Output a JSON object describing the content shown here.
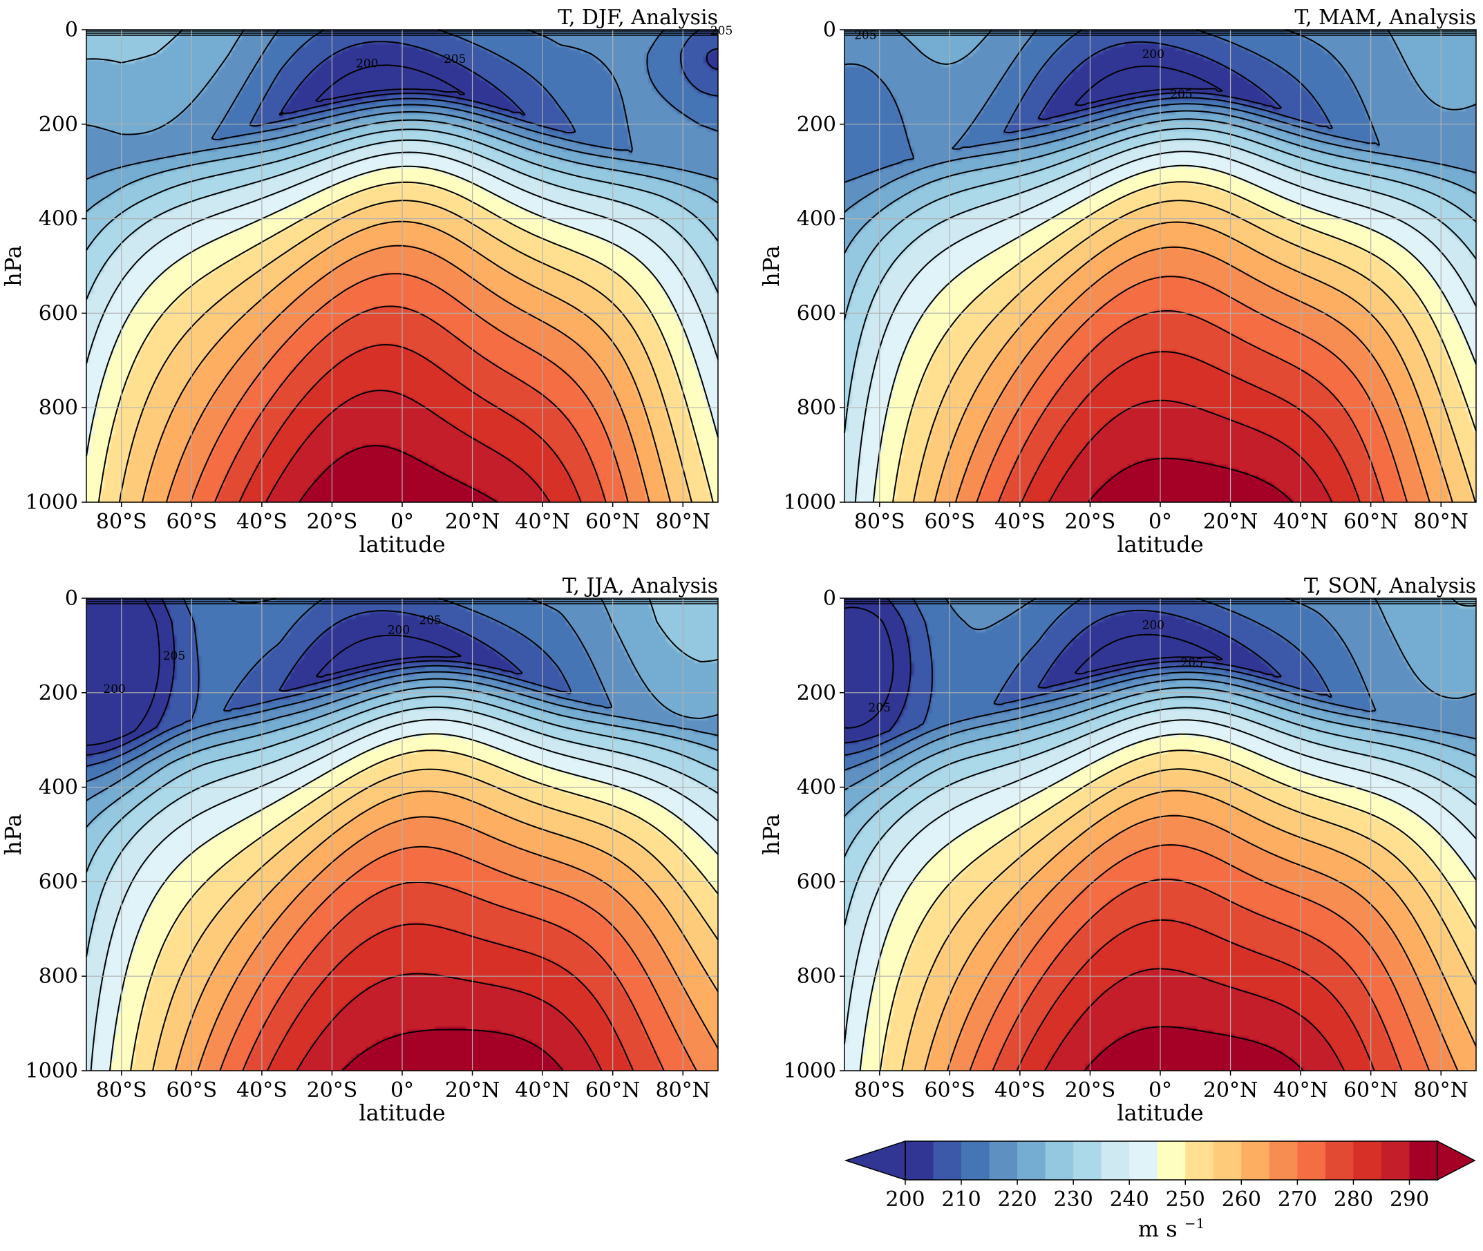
{
  "chart_data": [
    {
      "type": "contour",
      "title": "T, DJF, Analysis",
      "xlabel": "latitude",
      "ylabel": "hPa",
      "xlim": [
        -90,
        90
      ],
      "ylim": [
        1000,
        0
      ],
      "grid": true,
      "x_ticks": [
        "80°S",
        "60°S",
        "40°S",
        "20°S",
        "0°",
        "20°N",
        "40°N",
        "60°N",
        "80°N"
      ],
      "y_ticks": [
        "0",
        "200",
        "400",
        "600",
        "800",
        "1000"
      ],
      "contour_labels": [
        "200",
        "205",
        "205"
      ],
      "approx_values": {
        "surface_tropics": 295,
        "tropopause_tropics_min": 195,
        "south_pole_surface": 248,
        "north_pole_surface": 252,
        "south_pole_200hPa": 227,
        "north_pole_100hPa": 207
      }
    },
    {
      "type": "contour",
      "title": "T, MAM, Analysis",
      "xlabel": "latitude",
      "ylabel": "hPa",
      "xlim": [
        -90,
        90
      ],
      "ylim": [
        1000,
        0
      ],
      "grid": true,
      "x_ticks": [
        "80°S",
        "60°S",
        "40°S",
        "20°S",
        "0°",
        "20°N",
        "40°N",
        "60°N",
        "80°N"
      ],
      "y_ticks": [
        "0",
        "200",
        "400",
        "600",
        "800",
        "1000"
      ],
      "contour_labels": [
        "200",
        "205",
        "205"
      ],
      "approx_values": {
        "surface_tropics": 295,
        "tropopause_tropics_min": 195,
        "south_pole_surface": 238,
        "north_pole_surface": 258
      }
    },
    {
      "type": "contour",
      "title": "T, JJA, Analysis",
      "xlabel": "latitude",
      "ylabel": "hPa",
      "xlim": [
        -90,
        90
      ],
      "ylim": [
        1000,
        0
      ],
      "grid": true,
      "x_ticks": [
        "80°S",
        "60°S",
        "40°S",
        "20°S",
        "0°",
        "20°N",
        "40°N",
        "60°N",
        "80°N"
      ],
      "y_ticks": [
        "0",
        "200",
        "400",
        "600",
        "800",
        "1000"
      ],
      "contour_labels": [
        "200",
        "205",
        "205",
        "200"
      ],
      "approx_values": {
        "surface_tropics": 295,
        "tropopause_tropics_min": 195,
        "south_pole_surface": 240,
        "north_pole_surface": 270,
        "south_pole_200hPa": 198
      }
    },
    {
      "type": "contour",
      "title": "T, SON, Analysis",
      "xlabel": "latitude",
      "ylabel": "hPa",
      "xlim": [
        -90,
        90
      ],
      "ylim": [
        1000,
        0
      ],
      "grid": true,
      "x_ticks": [
        "80°S",
        "60°S",
        "40°S",
        "20°S",
        "0°",
        "20°N",
        "40°N",
        "60°N",
        "80°N"
      ],
      "y_ticks": [
        "0",
        "200",
        "400",
        "600",
        "800",
        "1000"
      ],
      "contour_labels": [
        "200",
        "205",
        "205"
      ],
      "approx_values": {
        "surface_tropics": 295,
        "tropopause_tropics_min": 195,
        "south_pole_surface": 242,
        "north_pole_surface": 265,
        "south_pole_100hPa": 201
      }
    }
  ],
  "colorbar": {
    "levels": [
      200,
      205,
      210,
      215,
      220,
      225,
      230,
      235,
      240,
      245,
      250,
      255,
      260,
      265,
      270,
      275,
      280,
      285,
      290,
      295
    ],
    "colors": [
      "#313695",
      "#3c58a8",
      "#4575b4",
      "#5f90c2",
      "#74add1",
      "#94c8e0",
      "#abd9e9",
      "#cfe9f2",
      "#e0f3f8",
      "#fefec0",
      "#fee090",
      "#fdcb7a",
      "#fdae61",
      "#f88d52",
      "#f46d43",
      "#e34a33",
      "#d73027",
      "#c41e2a",
      "#a50026"
    ],
    "extend": "both",
    "ticks": [
      "200",
      "210",
      "220",
      "230",
      "240",
      "250",
      "260",
      "270",
      "280",
      "290"
    ],
    "label": "m s",
    "label_exp": "−1"
  }
}
